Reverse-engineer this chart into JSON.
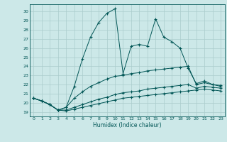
{
  "title": "",
  "xlabel": "Humidex (Indice chaleur)",
  "bg_color": "#cce8e8",
  "grid_color": "#aacccc",
  "line_color": "#005555",
  "xlim": [
    -0.5,
    23.5
  ],
  "ylim": [
    18.5,
    30.8
  ],
  "yticks": [
    19,
    20,
    21,
    22,
    23,
    24,
    25,
    26,
    27,
    28,
    29,
    30
  ],
  "xticks": [
    0,
    1,
    2,
    3,
    4,
    5,
    6,
    7,
    8,
    9,
    10,
    11,
    12,
    13,
    14,
    15,
    16,
    17,
    18,
    19,
    20,
    21,
    22,
    23
  ],
  "series": [
    [
      20.5,
      20.2,
      19.8,
      19.2,
      19.5,
      21.8,
      24.8,
      27.2,
      28.8,
      29.8,
      30.3,
      23.2,
      26.2,
      26.4,
      26.2,
      29.2,
      27.2,
      26.7,
      26.0,
      23.8,
      22.1,
      22.4,
      22.0,
      21.8
    ],
    [
      20.5,
      20.2,
      19.8,
      19.2,
      19.5,
      20.5,
      21.2,
      21.8,
      22.2,
      22.6,
      22.9,
      23.0,
      23.2,
      23.3,
      23.5,
      23.6,
      23.7,
      23.8,
      23.9,
      24.0,
      22.0,
      22.2,
      22.0,
      21.9
    ],
    [
      20.5,
      20.2,
      19.8,
      19.2,
      19.2,
      19.5,
      19.8,
      20.1,
      20.4,
      20.6,
      20.9,
      21.1,
      21.2,
      21.3,
      21.5,
      21.6,
      21.7,
      21.8,
      21.9,
      22.0,
      21.6,
      21.8,
      21.7,
      21.6
    ],
    [
      20.5,
      20.2,
      19.8,
      19.2,
      19.1,
      19.3,
      19.5,
      19.7,
      19.9,
      20.1,
      20.3,
      20.5,
      20.6,
      20.7,
      20.8,
      20.9,
      21.0,
      21.1,
      21.2,
      21.3,
      21.4,
      21.5,
      21.4,
      21.3
    ]
  ]
}
